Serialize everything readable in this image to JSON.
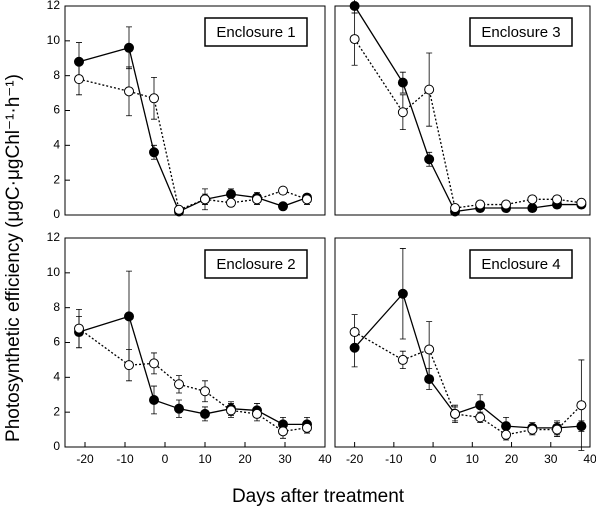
{
  "xlabel": "Days after treatment",
  "ylabel": "Photosynthetic efficiency (μgC·μgChl⁻¹·h⁻¹)",
  "chart_data": [
    {
      "type": "line",
      "label": "Enclosure 1",
      "x": [
        -21.5,
        -9,
        -2.75,
        3.5,
        10,
        16.5,
        23,
        29.5,
        35.5
      ],
      "xlim": [
        -25,
        40
      ],
      "ylim": [
        0,
        12
      ],
      "yticks": [
        0,
        2,
        4,
        6,
        8,
        10,
        12
      ],
      "series": [
        {
          "color": "#000000",
          "marker_fill": "#000000",
          "dash": "solid",
          "values": [
            8.8,
            9.6,
            3.6,
            0.2,
            0.9,
            1.2,
            1.0,
            0.5,
            1.0
          ],
          "errors": [
            1.1,
            1.2,
            0.4,
            0.1,
            0.3,
            0.3,
            0.3,
            0.1,
            0.2
          ]
        },
        {
          "color": "#000000",
          "marker_fill": "#ffffff",
          "dash": "dotted",
          "values": [
            7.8,
            7.1,
            6.7,
            0.3,
            0.9,
            0.7,
            0.9,
            1.4,
            0.9
          ],
          "errors": [
            0.9,
            1.4,
            1.2,
            0.1,
            0.6,
            0.2,
            0.3,
            0.1,
            0.3
          ]
        }
      ]
    },
    {
      "type": "line",
      "label": "Enclosure 3",
      "x": [
        -20,
        -7.7,
        -1,
        5.6,
        12,
        18.6,
        25.3,
        31.6,
        37.8
      ],
      "xlim": [
        -25,
        40
      ],
      "ylim": [
        0,
        12
      ],
      "series": [
        {
          "color": "#000000",
          "marker_fill": "#000000",
          "dash": "solid",
          "values": [
            12.0,
            7.6,
            3.2,
            0.2,
            0.4,
            0.4,
            0.4,
            0.6,
            0.6
          ],
          "errors": [
            0.4,
            0.6,
            0.4,
            0.1,
            0.1,
            0.1,
            0.2,
            0.2,
            0.2
          ]
        },
        {
          "color": "#000000",
          "marker_fill": "#ffffff",
          "dash": "dotted",
          "values": [
            10.1,
            5.9,
            7.2,
            0.4,
            0.6,
            0.6,
            0.9,
            0.9,
            0.7
          ],
          "errors": [
            1.5,
            1.0,
            2.1,
            0.1,
            0.2,
            0.2,
            0.2,
            0.2,
            0.2
          ]
        }
      ]
    },
    {
      "type": "line",
      "label": "Enclosure 2",
      "x": [
        -21.5,
        -9,
        -2.75,
        3.5,
        10,
        16.5,
        23,
        29.5,
        35.5
      ],
      "xlim": [
        -25,
        40
      ],
      "ylim": [
        0,
        12
      ],
      "yticks": [
        0,
        2,
        4,
        6,
        8,
        10,
        12
      ],
      "xticks": [
        -20,
        -10,
        0,
        10,
        20,
        30,
        40
      ],
      "series": [
        {
          "color": "#000000",
          "marker_fill": "#000000",
          "dash": "solid",
          "values": [
            6.6,
            7.5,
            2.7,
            2.2,
            1.9,
            2.2,
            2.1,
            1.3,
            1.3
          ],
          "errors": [
            0.9,
            2.6,
            0.8,
            0.5,
            0.4,
            0.4,
            0.4,
            0.4,
            0.4
          ]
        },
        {
          "color": "#000000",
          "marker_fill": "#ffffff",
          "dash": "dotted",
          "values": [
            6.8,
            4.7,
            4.8,
            3.6,
            3.2,
            2.1,
            1.9,
            0.9,
            1.1
          ],
          "errors": [
            1.1,
            0.9,
            0.6,
            0.5,
            0.6,
            0.4,
            0.4,
            0.4,
            0.3
          ]
        }
      ]
    },
    {
      "type": "line",
      "label": "Enclosure 4",
      "x": [
        -20,
        -7.7,
        -1,
        5.6,
        12,
        18.6,
        25.3,
        31.6,
        37.8
      ],
      "xlim": [
        -25,
        40
      ],
      "ylim": [
        0,
        12
      ],
      "xticks": [
        -20,
        -10,
        0,
        10,
        20,
        30,
        40
      ],
      "series": [
        {
          "color": "#000000",
          "marker_fill": "#000000",
          "dash": "solid",
          "values": [
            5.7,
            8.8,
            3.9,
            1.9,
            2.4,
            1.2,
            1.1,
            1.1,
            1.2
          ],
          "errors": [
            1.1,
            2.6,
            0.6,
            0.5,
            0.6,
            0.5,
            0.3,
            0.4,
            0.3
          ]
        },
        {
          "color": "#000000",
          "marker_fill": "#ffffff",
          "dash": "dotted",
          "values": [
            6.6,
            5.0,
            5.6,
            1.9,
            1.7,
            0.7,
            1.0,
            1.0,
            2.4
          ],
          "errors": [
            1.0,
            0.5,
            1.6,
            0.4,
            0.3,
            0.3,
            0.3,
            0.4,
            2.6
          ]
        }
      ]
    }
  ]
}
